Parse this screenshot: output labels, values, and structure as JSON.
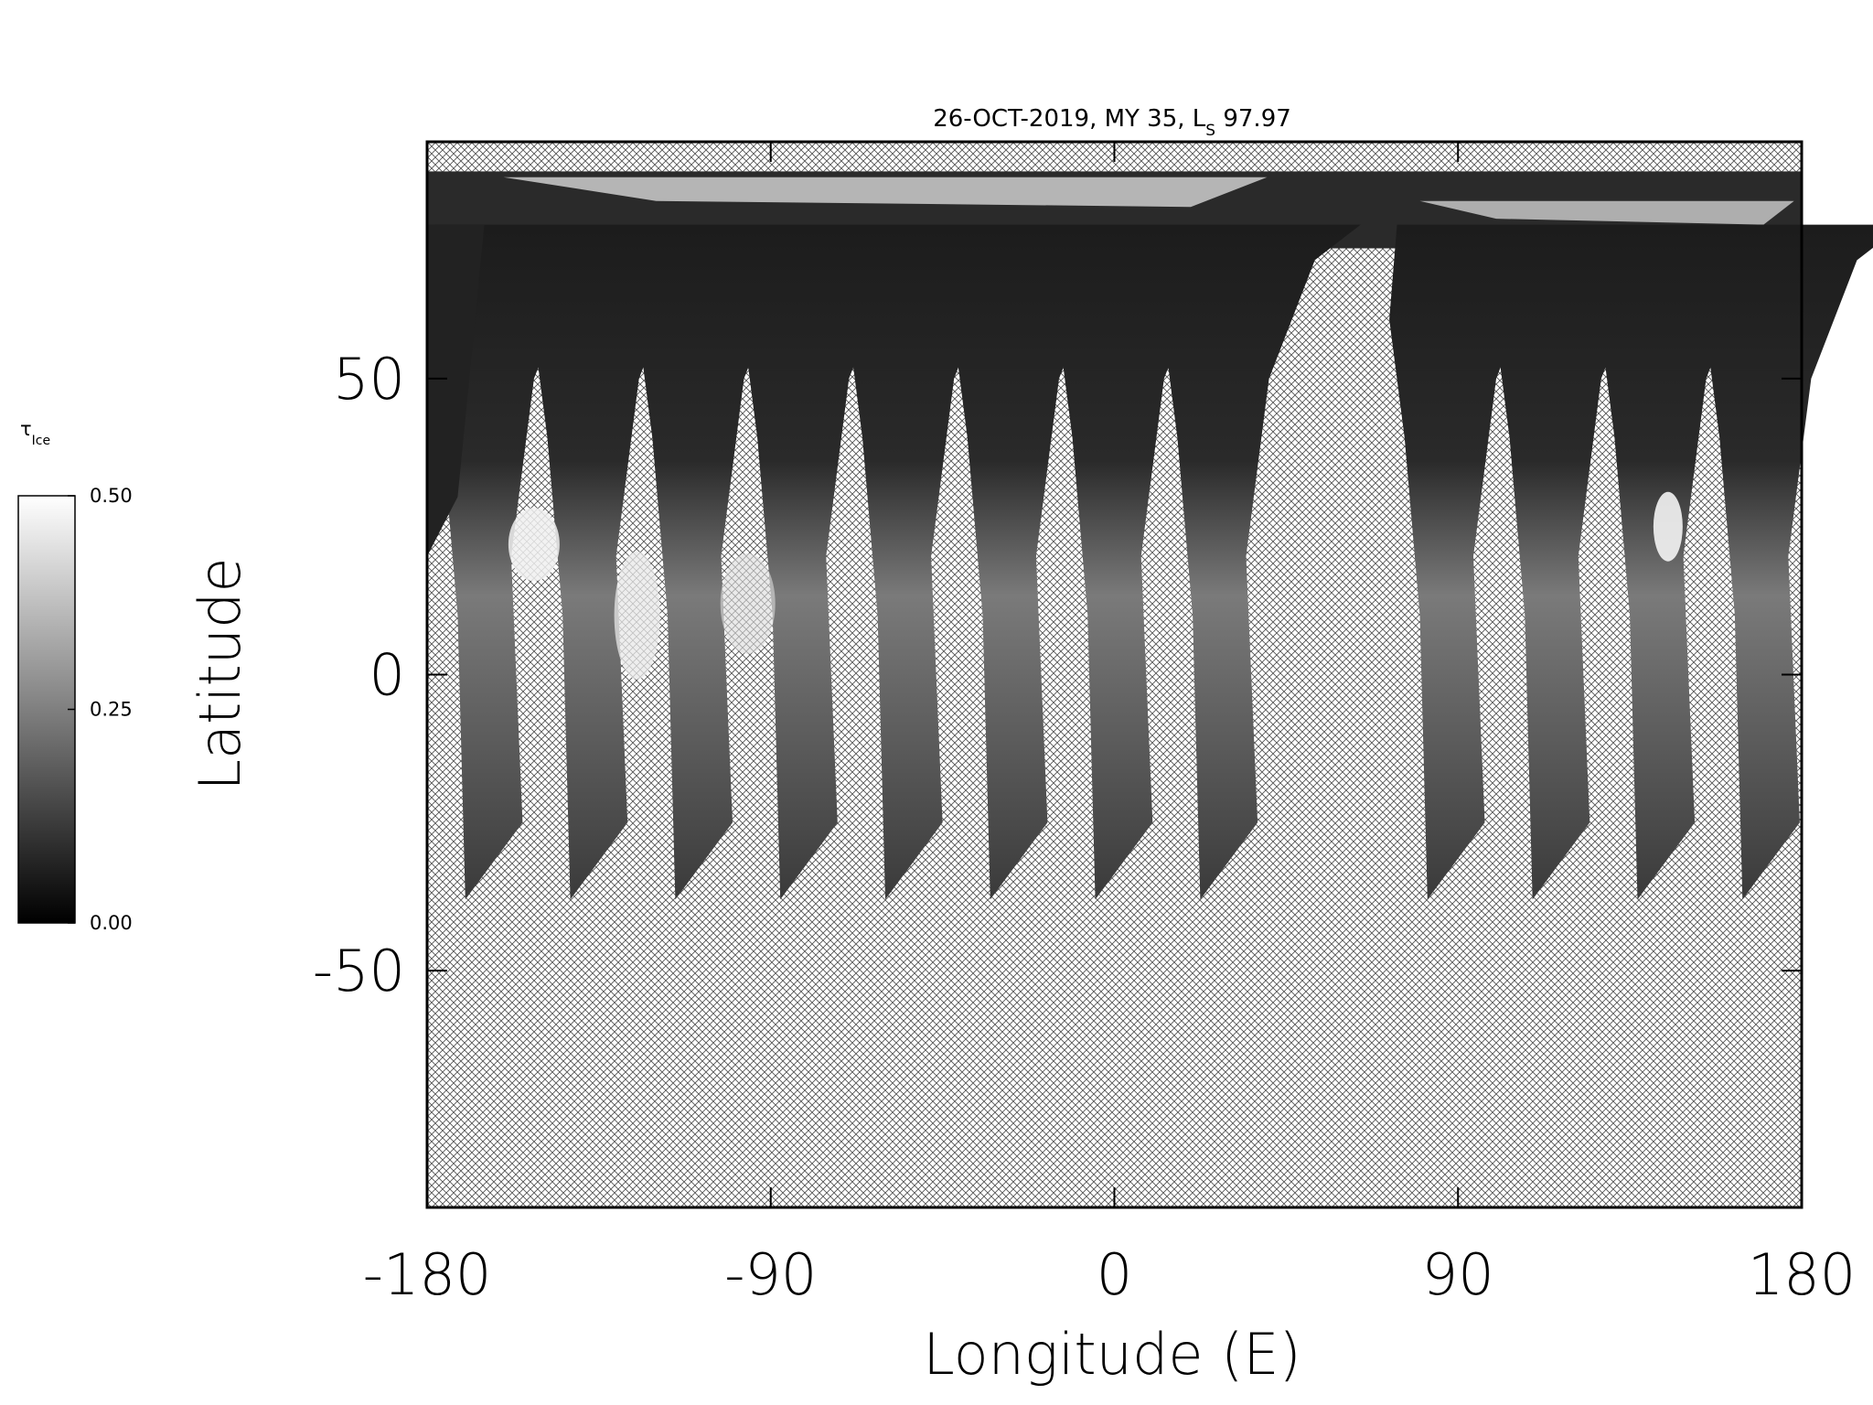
{
  "chart_data": {
    "type": "map",
    "title": [
      "26-OCT-2019, MY 35,  L",
      "S",
      " 97.97"
    ],
    "xlabel": "Longitude (E)",
    "ylabel": "Latitude",
    "xlim": [
      -180,
      180
    ],
    "xticks": [
      -180,
      -90,
      0,
      90,
      180
    ],
    "ylim": [
      -90,
      90
    ],
    "yticks": [
      -50,
      0,
      50
    ],
    "colorbar": {
      "label": [
        "τ",
        "Ice"
      ],
      "lim": [
        0,
        0.5
      ],
      "ticks": [
        {
          "value": 0,
          "label": "0.00"
        },
        {
          "value": 0.25,
          "label": "0.25"
        },
        {
          "value": 0.5,
          "label": "0.50"
        }
      ],
      "colors": [
        "#000000",
        "#ffffff"
      ]
    }
  }
}
